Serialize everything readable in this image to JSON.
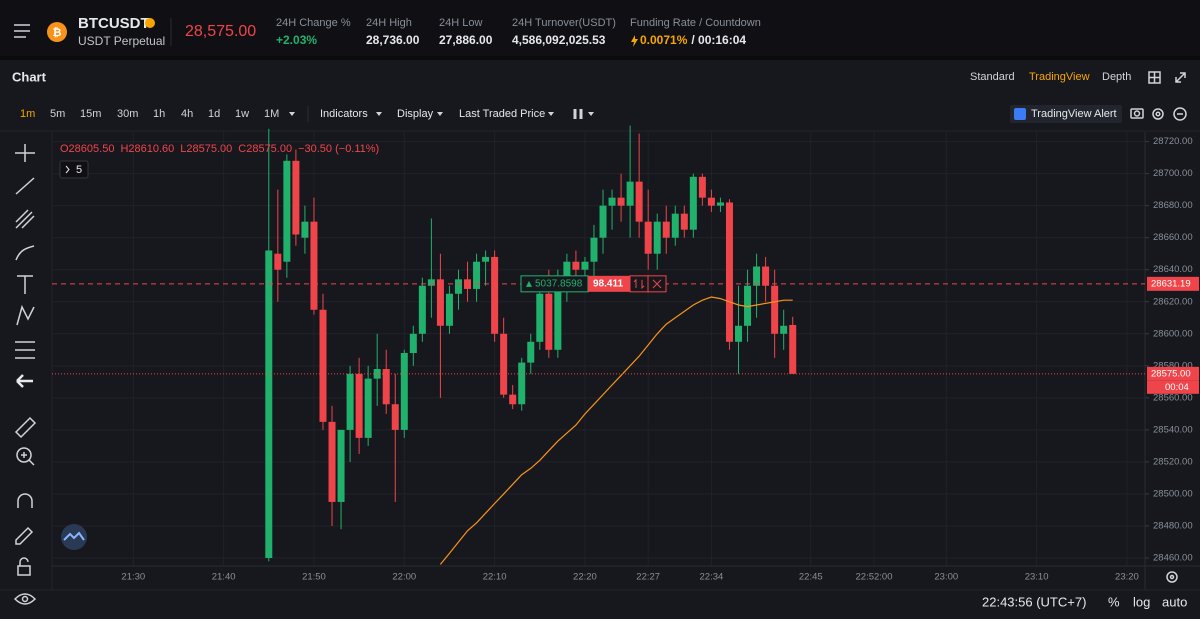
{
  "header": {
    "symbol": "BTCUSDT",
    "contract": "USDT Perpetual",
    "last_price": "28,575.00",
    "stats": [
      {
        "label": "24H Change %",
        "value": "+2.03%"
      },
      {
        "label": "24H High",
        "value": "28,736.00"
      },
      {
        "label": "24H Low",
        "value": "27,886.00"
      },
      {
        "label": "24H Turnover(USDT)",
        "value": "4,586,092,025.53"
      },
      {
        "label": "Funding Rate / Countdown",
        "value": "0.0071%",
        "extra": "/ 00:16:04"
      }
    ]
  },
  "panel": {
    "title": "Chart",
    "views": [
      "Standard",
      "TradingView",
      "Depth"
    ],
    "active_view": 1
  },
  "toolbar": {
    "intervals": [
      "1m",
      "5m",
      "15m",
      "30m",
      "1h",
      "4h",
      "1d",
      "1w",
      "1M"
    ],
    "active_interval": 0,
    "menus": [
      "Indicators",
      "Display",
      "Last Traded Price"
    ],
    "alert": "TradingView Alert"
  },
  "footer": {
    "clock": "22:43:56 (UTC+7)",
    "options": [
      "%",
      "log",
      "auto"
    ]
  },
  "chart_data": {
    "type": "candlestick",
    "ohlc_legend": {
      "open": "O28605.50",
      "high": "H28610.60",
      "low": "L28575.00",
      "close": "C28575.00",
      "change": "−30.50 (−0.11%)"
    },
    "indicator_count": "5",
    "up_color": "#20b26c",
    "down_color": "#ef454a",
    "ma_color": "#f7931a",
    "grid": true,
    "xlim": [
      "21:21",
      "23:22"
    ],
    "xticks": [
      "21:30",
      "21:40",
      "21:50",
      "22:00",
      "22:10",
      "22:20",
      "22:27",
      "22:34",
      "22:45",
      "22:52:00",
      "23:00",
      "23:10",
      "23:20"
    ],
    "ylim": [
      28455,
      28726
    ],
    "yticks": [
      {
        "value": 28460,
        "label": "28460.00"
      },
      {
        "value": 28480,
        "label": "28480.00"
      },
      {
        "value": 28500,
        "label": "28500.00"
      },
      {
        "value": 28520,
        "label": "28520.00"
      },
      {
        "value": 28540,
        "label": "28540.00"
      },
      {
        "value": 28560,
        "label": "28560.00"
      },
      {
        "value": 28580,
        "label": "28580.00"
      },
      {
        "value": 28600,
        "label": "28600.00"
      },
      {
        "value": 28620,
        "label": "28620.00"
      },
      {
        "value": 28640,
        "label": "28640.00"
      },
      {
        "value": 28660,
        "label": "28660.00"
      },
      {
        "value": 28680,
        "label": "28680.00"
      },
      {
        "value": 28700,
        "label": "28700.00"
      },
      {
        "value": 28720,
        "label": "28720.00"
      }
    ],
    "x": [
      "21:45",
      "21:46",
      "21:47",
      "21:48",
      "21:49",
      "21:50",
      "21:51",
      "21:52",
      "21:53",
      "21:54",
      "21:55",
      "21:56",
      "21:57",
      "21:58",
      "21:59",
      "22:00",
      "22:01",
      "22:02",
      "22:03",
      "22:04",
      "22:05",
      "22:06",
      "22:07",
      "22:08",
      "22:09",
      "22:10",
      "22:11",
      "22:12",
      "22:13",
      "22:14",
      "22:15",
      "22:16",
      "22:17",
      "22:18",
      "22:19",
      "22:20",
      "22:21",
      "22:22",
      "22:23",
      "22:24",
      "22:25",
      "22:26",
      "22:27",
      "22:28",
      "22:29",
      "22:30",
      "22:31",
      "22:32",
      "22:33",
      "22:34",
      "22:35",
      "22:36",
      "22:37",
      "22:38",
      "22:39",
      "22:40",
      "22:41",
      "22:42",
      "22:43"
    ],
    "open": [
      28460,
      28650,
      28645,
      28708,
      28660,
      28670,
      28615,
      28545,
      28495,
      28540,
      28575,
      28535,
      28572,
      28578,
      28556,
      28540,
      28588,
      28600,
      28630,
      28634,
      28605,
      28625,
      28634,
      28628,
      28645,
      28648,
      28600,
      28562,
      28556,
      28582,
      28595,
      28625,
      28590,
      28636,
      28645,
      28640,
      28645,
      28660,
      28680,
      28685,
      28680,
      28695,
      28670,
      28650,
      28670,
      28660,
      28675,
      28665,
      28698,
      28685,
      28680,
      28682,
      28595,
      28605,
      28630,
      28642,
      28630,
      28600,
      28605.5
    ],
    "high": [
      28728,
      28690,
      28712,
      28715,
      28680,
      28685,
      28625,
      28555,
      28540,
      28580,
      28585,
      28580,
      28600,
      28590,
      28575,
      28590,
      28605,
      28635,
      28672,
      28650,
      28630,
      28640,
      28645,
      28650,
      28652,
      28652,
      28610,
      28568,
      28585,
      28600,
      28630,
      28640,
      28640,
      28650,
      28652,
      28648,
      28668,
      28690,
      28690,
      28700,
      28730,
      28725,
      28690,
      28675,
      28680,
      28680,
      28680,
      28700,
      28700,
      28690,
      28685,
      28684,
      28630,
      28640,
      28650,
      28648,
      28640,
      28615,
      28610.6
    ],
    "low": [
      28458,
      28620,
      28635,
      28655,
      28650,
      28612,
      28540,
      28480,
      28478,
      28520,
      28525,
      28530,
      28555,
      28550,
      28495,
      28535,
      28580,
      28595,
      28610,
      28560,
      28600,
      28615,
      28620,
      28620,
      28630,
      28595,
      28560,
      28553,
      28552,
      28575,
      28590,
      28585,
      28585,
      28620,
      28630,
      28632,
      28635,
      28650,
      28665,
      28670,
      28660,
      28660,
      28640,
      28640,
      28650,
      28655,
      28660,
      28660,
      28680,
      28676,
      28676,
      28590,
      28575,
      28595,
      28610,
      28620,
      28585,
      28590,
      28575
    ],
    "close": [
      28652,
      28640,
      28708,
      28662,
      28670,
      28615,
      28545,
      28495,
      28540,
      28575,
      28535,
      28572,
      28578,
      28556,
      28540,
      28588,
      28600,
      28630,
      28634,
      28605,
      28625,
      28634,
      28628,
      28645,
      28648,
      28600,
      28562,
      28556,
      28582,
      28595,
      28625,
      28590,
      28636,
      28645,
      28640,
      28645,
      28660,
      28680,
      28685,
      28680,
      28695,
      28670,
      28650,
      28670,
      28660,
      28675,
      28665,
      28698,
      28685,
      28680,
      28682,
      28595,
      28605,
      28630,
      28642,
      28630,
      28600,
      28605,
      28575
    ],
    "ma": [
      null,
      null,
      null,
      null,
      null,
      null,
      null,
      null,
      null,
      null,
      null,
      null,
      null,
      null,
      null,
      null,
      null,
      null,
      null,
      28456,
      28463,
      28470,
      28477,
      28482,
      28488,
      28494,
      28500,
      28506,
      28512,
      28516,
      28521,
      28527,
      28533,
      28538,
      28543,
      28550,
      28556,
      28562,
      28568,
      28574,
      28580,
      28586,
      28593,
      28600,
      28606,
      28610,
      28614,
      28618,
      28621,
      28623,
      28622,
      28620,
      28618,
      28617,
      28618,
      28619,
      28620,
      28621,
      28621
    ],
    "price_lines": [
      {
        "value": 28631.19,
        "label": "28631.19"
      },
      {
        "value": 28575,
        "label": "28575.00",
        "countdown": "00:04"
      }
    ],
    "order": {
      "size": "5037.8598",
      "pnl": "98.411"
    }
  }
}
